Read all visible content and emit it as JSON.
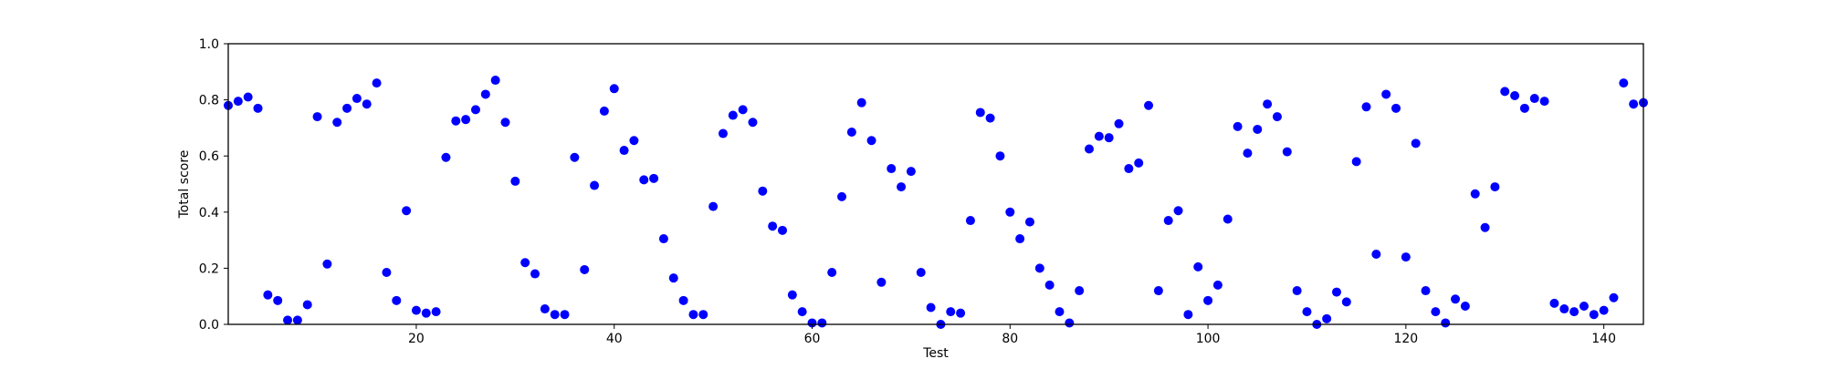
{
  "chart_data": {
    "type": "scatter",
    "title": "",
    "xlabel": "Test",
    "ylabel": "Total score",
    "xlim": [
      1,
      144
    ],
    "ylim": [
      0.0,
      1.0
    ],
    "xticks": [
      20,
      40,
      60,
      80,
      100,
      120,
      140
    ],
    "yticks": [
      0.0,
      0.2,
      0.4,
      0.6,
      0.8,
      1.0
    ],
    "grid": false,
    "marker_color": "#0000ff",
    "series": [
      {
        "x": [
          1,
          2,
          3,
          4,
          5,
          6,
          7,
          8,
          9,
          10,
          11,
          12,
          13,
          14,
          15,
          16,
          17,
          18,
          19,
          20,
          21,
          22,
          23,
          24,
          25,
          26,
          27,
          28,
          29,
          30,
          31,
          32,
          33,
          34,
          35,
          36,
          37,
          38,
          39,
          40,
          41,
          42,
          43,
          44,
          45,
          46,
          47,
          48,
          49,
          50,
          51,
          52,
          53,
          54,
          55,
          56,
          57,
          58,
          59,
          60,
          61,
          62,
          63,
          64,
          65,
          66,
          67,
          68,
          69,
          70,
          71,
          72,
          73,
          74,
          75,
          76,
          77,
          78,
          79,
          80,
          81,
          82,
          83,
          84,
          85,
          86,
          87,
          88,
          89,
          90,
          91,
          92,
          93,
          94,
          95,
          96,
          97,
          98,
          99,
          100,
          101,
          102,
          103,
          104,
          105,
          106,
          107,
          108,
          109,
          110,
          111,
          112,
          113,
          114,
          115,
          116,
          117,
          118,
          119,
          120,
          121,
          122,
          123,
          124,
          125,
          126,
          127,
          128,
          129,
          130,
          131,
          132,
          133,
          134,
          135,
          136,
          137,
          138,
          139,
          140,
          141,
          142,
          143,
          144
        ],
        "y": [
          0.78,
          0.795,
          0.81,
          0.77,
          0.105,
          0.085,
          0.015,
          0.015,
          0.07,
          0.74,
          0.215,
          0.72,
          0.77,
          0.805,
          0.785,
          0.86,
          0.185,
          0.085,
          0.405,
          0.05,
          0.04,
          0.045,
          0.595,
          0.725,
          0.73,
          0.765,
          0.82,
          0.87,
          0.72,
          0.51,
          0.22,
          0.18,
          0.055,
          0.035,
          0.035,
          0.595,
          0.195,
          0.495,
          0.76,
          0.84,
          0.62,
          0.655,
          0.515,
          0.52,
          0.305,
          0.165,
          0.085,
          0.035,
          0.035,
          0.42,
          0.68,
          0.745,
          0.765,
          0.72,
          0.475,
          0.35,
          0.335,
          0.105,
          0.045,
          0.005,
          0.005,
          0.185,
          0.455,
          0.685,
          0.79,
          0.655,
          0.15,
          0.555,
          0.49,
          0.545,
          0.185,
          0.06,
          0.0,
          0.045,
          0.04,
          0.37,
          0.755,
          0.735,
          0.6,
          0.4,
          0.305,
          0.365,
          0.2,
          0.14,
          0.045,
          0.005,
          0.12,
          0.625,
          0.67,
          0.665,
          0.715,
          0.555,
          0.575,
          0.78,
          0.12,
          0.37,
          0.405,
          0.035,
          0.205,
          0.085,
          0.14,
          0.375,
          0.705,
          0.61,
          0.695,
          0.785,
          0.74,
          0.615,
          0.12,
          0.045,
          0.0,
          0.02,
          0.115,
          0.08,
          0.58,
          0.775,
          0.25,
          0.82,
          0.77,
          0.24,
          0.645,
          0.12,
          0.045,
          0.005,
          0.09,
          0.065,
          0.465,
          0.345,
          0.49,
          0.83,
          0.815,
          0.77,
          0.805,
          0.795,
          0.075,
          0.055,
          0.045,
          0.065,
          0.035,
          0.05,
          0.095,
          0.86,
          0.785,
          0.79
        ]
      }
    ]
  }
}
